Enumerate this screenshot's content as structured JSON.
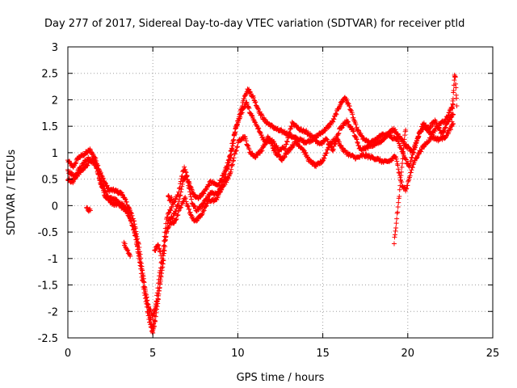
{
  "chart_data": {
    "type": "scatter",
    "title": "Day 277 of 2017, Sidereal Day-to-day VTEC variation (SDTVAR) for receiver ptld",
    "xlabel": "GPS time / hours",
    "ylabel": "SDTVAR / TECUs",
    "xlim": [
      0,
      25
    ],
    "ylim": [
      -2.5,
      3
    ],
    "xticks": [
      0,
      5,
      10,
      15,
      20,
      25
    ],
    "yticks": [
      -2.5,
      -2,
      -1.5,
      -1,
      -0.5,
      0,
      0.5,
      1,
      1.5,
      2,
      2.5,
      3
    ],
    "grid": true,
    "marker": "+",
    "color": "#ff0000",
    "series": [
      {
        "name": "",
        "tracks": [
          [
            [
              0,
              0.85
            ],
            [
              0.3,
              0.72
            ],
            [
              0.6,
              0.9
            ],
            [
              1.0,
              0.98
            ],
            [
              1.3,
              1.05
            ],
            [
              1.6,
              0.9
            ],
            [
              2.0,
              0.55
            ],
            [
              2.4,
              0.3
            ],
            [
              2.8,
              0.28
            ],
            [
              3.2,
              0.22
            ],
            [
              3.6,
              -0.05
            ],
            [
              3.9,
              -0.3
            ],
            [
              4.2,
              -0.8
            ],
            [
              4.5,
              -1.5
            ],
            [
              4.8,
              -2.05
            ],
            [
              5.0,
              -2.35
            ],
            [
              5.15,
              -1.95
            ],
            [
              5.35,
              -1.4
            ],
            [
              5.6,
              -0.85
            ],
            [
              5.8,
              -0.25
            ],
            [
              6.0,
              -0.1
            ],
            [
              6.2,
              0.05
            ],
            [
              6.5,
              0.2
            ],
            [
              6.7,
              0.55
            ],
            [
              6.85,
              0.72
            ],
            [
              7.1,
              0.45
            ],
            [
              7.4,
              0.2
            ],
            [
              7.7,
              0.15
            ],
            [
              8.0,
              0.25
            ],
            [
              8.4,
              0.45
            ],
            [
              8.8,
              0.38
            ],
            [
              9.2,
              0.6
            ],
            [
              9.5,
              0.9
            ],
            [
              9.8,
              1.35
            ],
            [
              10.1,
              1.7
            ],
            [
              10.4,
              2.08
            ],
            [
              10.6,
              2.2
            ],
            [
              10.9,
              2.05
            ],
            [
              11.3,
              1.75
            ],
            [
              11.6,
              1.6
            ],
            [
              12.0,
              1.5
            ],
            [
              12.4,
              1.42
            ],
            [
              12.8,
              1.38
            ],
            [
              13.2,
              1.3
            ],
            [
              13.6,
              1.25
            ],
            [
              14.0,
              1.2
            ],
            [
              14.4,
              1.25
            ],
            [
              14.8,
              1.35
            ],
            [
              15.2,
              1.45
            ],
            [
              15.6,
              1.6
            ],
            [
              16.0,
              1.9
            ],
            [
              16.3,
              2.05
            ],
            [
              16.6,
              1.85
            ],
            [
              17.0,
              1.45
            ],
            [
              17.4,
              1.25
            ],
            [
              17.8,
              1.18
            ],
            [
              18.2,
              1.28
            ],
            [
              18.6,
              1.35
            ],
            [
              19.0,
              1.3
            ],
            [
              19.4,
              1.25
            ],
            [
              19.8,
              0.9
            ],
            [
              20.1,
              0.75
            ],
            [
              20.4,
              1.1
            ],
            [
              20.7,
              1.38
            ],
            [
              21.0,
              1.5
            ],
            [
              21.4,
              1.35
            ],
            [
              21.8,
              1.52
            ],
            [
              22.2,
              1.62
            ],
            [
              22.5,
              1.8
            ],
            [
              22.7,
              1.95
            ]
          ],
          [
            [
              0,
              0.5
            ],
            [
              0.3,
              0.45
            ],
            [
              0.6,
              0.6
            ],
            [
              1.0,
              0.72
            ],
            [
              1.3,
              0.85
            ],
            [
              1.6,
              0.85
            ],
            [
              1.9,
              0.45
            ],
            [
              2.2,
              0.18
            ],
            [
              2.6,
              0.05
            ],
            [
              3.0,
              0.0
            ],
            [
              3.3,
              -0.05
            ],
            [
              3.6,
              -0.2
            ],
            [
              3.9,
              -0.45
            ],
            [
              4.2,
              -1.0
            ],
            [
              4.5,
              -1.65
            ],
            [
              4.8,
              -2.2
            ],
            [
              5.0,
              -2.4
            ],
            [
              5.2,
              -2.05
            ],
            [
              5.4,
              -1.55
            ],
            [
              5.6,
              -1.1
            ],
            [
              5.8,
              -0.5
            ],
            [
              6.0,
              -0.35
            ],
            [
              6.3,
              -0.3
            ],
            [
              6.6,
              -0.05
            ],
            [
              6.9,
              0.15
            ],
            [
              7.2,
              -0.15
            ],
            [
              7.5,
              -0.3
            ],
            [
              7.9,
              -0.15
            ],
            [
              8.3,
              0.1
            ],
            [
              8.7,
              0.1
            ],
            [
              9.1,
              0.35
            ],
            [
              9.5,
              0.55
            ],
            [
              9.8,
              0.95
            ],
            [
              10.1,
              1.25
            ],
            [
              10.4,
              1.3
            ],
            [
              10.7,
              1.02
            ],
            [
              11.0,
              0.92
            ],
            [
              11.4,
              1.05
            ],
            [
              11.8,
              1.3
            ],
            [
              12.2,
              1.0
            ],
            [
              12.6,
              0.88
            ],
            [
              13.0,
              1.05
            ],
            [
              13.4,
              1.2
            ],
            [
              13.8,
              1.08
            ],
            [
              14.2,
              0.85
            ],
            [
              14.6,
              0.75
            ],
            [
              15.0,
              0.85
            ],
            [
              15.4,
              1.15
            ],
            [
              15.8,
              1.28
            ],
            [
              16.2,
              1.05
            ],
            [
              16.6,
              0.95
            ],
            [
              17.0,
              0.9
            ],
            [
              17.4,
              0.95
            ],
            [
              17.8,
              0.92
            ],
            [
              18.2,
              0.88
            ],
            [
              18.6,
              0.82
            ],
            [
              19.0,
              0.85
            ],
            [
              19.3,
              0.95
            ],
            [
              19.5,
              0.6
            ],
            [
              19.7,
              0.35
            ],
            [
              19.9,
              0.3
            ],
            [
              20.1,
              0.55
            ],
            [
              20.4,
              0.85
            ],
            [
              20.7,
              1.02
            ],
            [
              21.0,
              1.15
            ],
            [
              21.4,
              1.3
            ],
            [
              21.8,
              1.25
            ],
            [
              22.2,
              1.3
            ],
            [
              22.5,
              1.45
            ],
            [
              22.7,
              1.55
            ]
          ],
          [
            [
              0,
              0.65
            ],
            [
              0.4,
              0.55
            ],
            [
              0.8,
              0.75
            ],
            [
              1.2,
              0.9
            ],
            [
              1.6,
              0.78
            ],
            [
              2.0,
              0.42
            ],
            [
              2.4,
              0.15
            ],
            [
              2.8,
              0.1
            ],
            [
              3.2,
              0.02
            ],
            [
              3.6,
              -0.15
            ],
            [
              4.0,
              -0.6
            ],
            [
              4.4,
              -1.3
            ],
            [
              4.7,
              -1.85
            ],
            [
              5.0,
              -2.1
            ],
            [
              5.3,
              -1.75
            ],
            [
              5.5,
              -1.25
            ],
            [
              5.7,
              -0.7
            ],
            [
              5.9,
              -0.3
            ],
            [
              6.2,
              -0.2
            ],
            [
              6.5,
              0.02
            ],
            [
              6.8,
              0.5
            ],
            [
              7.0,
              0.55
            ],
            [
              7.3,
              0.05
            ],
            [
              7.6,
              -0.1
            ],
            [
              8.0,
              0.05
            ],
            [
              8.4,
              0.25
            ],
            [
              8.8,
              0.22
            ],
            [
              9.2,
              0.5
            ],
            [
              9.6,
              0.95
            ],
            [
              9.9,
              1.5
            ],
            [
              10.2,
              1.75
            ],
            [
              10.5,
              1.95
            ],
            [
              10.8,
              1.7
            ],
            [
              11.2,
              1.45
            ],
            [
              11.6,
              1.2
            ],
            [
              12.0,
              1.25
            ],
            [
              12.4,
              1.05
            ],
            [
              12.8,
              1.1
            ],
            [
              13.2,
              1.55
            ],
            [
              13.6,
              1.45
            ],
            [
              14.0,
              1.4
            ],
            [
              14.4,
              1.3
            ],
            [
              14.8,
              1.15
            ],
            [
              15.2,
              1.25
            ],
            [
              15.6,
              1.05
            ],
            [
              16.0,
              1.45
            ],
            [
              16.4,
              1.6
            ],
            [
              16.8,
              1.4
            ],
            [
              17.2,
              1.05
            ],
            [
              17.6,
              1.1
            ],
            [
              18.0,
              1.15
            ],
            [
              18.4,
              1.2
            ],
            [
              18.8,
              1.35
            ],
            [
              19.2,
              1.45
            ],
            [
              19.6,
              1.25
            ],
            [
              20.0,
              1.1
            ],
            [
              20.3,
              1.0
            ],
            [
              20.6,
              1.3
            ],
            [
              20.9,
              1.55
            ],
            [
              21.2,
              1.45
            ],
            [
              21.6,
              1.6
            ],
            [
              22.0,
              1.35
            ],
            [
              22.4,
              1.6
            ],
            [
              22.7,
              1.75
            ]
          ],
          [
            [
              19.2,
              -0.7
            ],
            [
              19.3,
              -0.4
            ],
            [
              19.4,
              -0.1
            ],
            [
              19.5,
              0.2
            ],
            [
              19.6,
              0.55
            ],
            [
              19.7,
              0.9
            ],
            [
              19.8,
              1.25
            ],
            [
              19.9,
              1.5
            ]
          ],
          [
            [
              22.6,
              1.6
            ],
            [
              22.65,
              1.95
            ],
            [
              22.7,
              2.2
            ],
            [
              22.75,
              2.45
            ],
            [
              22.8,
              2.4
            ],
            [
              22.85,
              2.1
            ],
            [
              22.9,
              1.8
            ]
          ],
          [
            [
              3.3,
              -0.7
            ],
            [
              3.5,
              -0.85
            ],
            [
              3.7,
              -1.0
            ]
          ],
          [
            [
              1.1,
              -0.05
            ],
            [
              1.2,
              -0.1
            ],
            [
              1.35,
              -0.08
            ]
          ],
          [
            [
              5.1,
              -0.85
            ],
            [
              5.3,
              -0.75
            ],
            [
              5.5,
              -0.95
            ]
          ],
          [
            [
              5.9,
              0.2
            ],
            [
              6.0,
              0.1
            ],
            [
              6.15,
              0.15
            ]
          ]
        ]
      }
    ]
  }
}
